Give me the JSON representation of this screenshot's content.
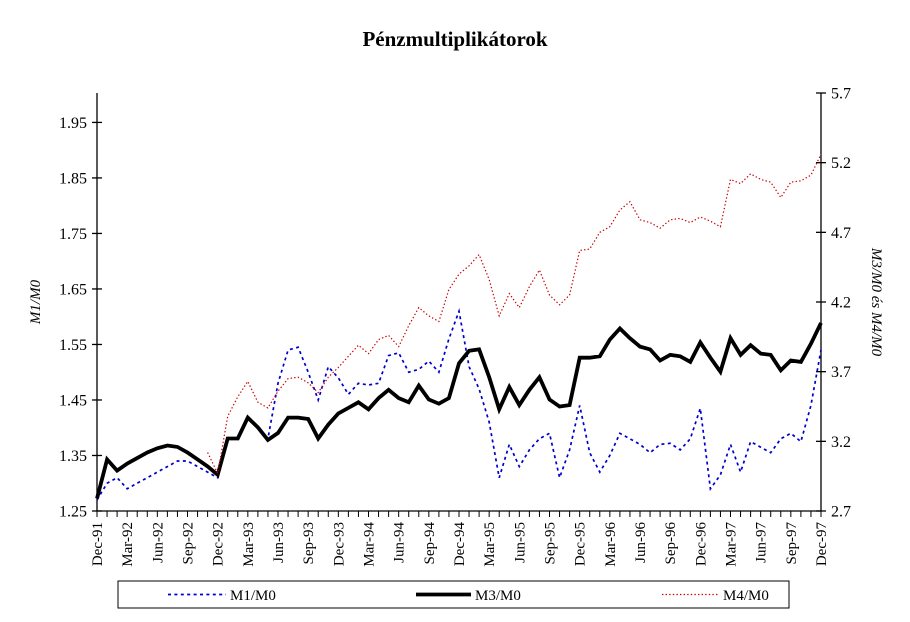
{
  "page": {
    "background": "#ffffff"
  },
  "chart_data": {
    "type": "line",
    "title": "Pénzmultiplikátorok",
    "ylabel_left": "M1/M0",
    "ylabel_right": "M3/M0 és M4/M0",
    "grid": false,
    "legend_position": "bottom",
    "y_left": {
      "min": 1.25,
      "max": 2.003,
      "ticks": [
        1.25,
        1.35,
        1.45,
        1.55,
        1.65,
        1.75,
        1.85,
        1.95
      ],
      "decimals": 2
    },
    "y_right": {
      "min": 2.7,
      "max": 5.7,
      "ticks": [
        2.7,
        3.2,
        3.7,
        4.2,
        4.7,
        5.2,
        5.7
      ],
      "decimals": 1
    },
    "x": {
      "points": 73,
      "label_every_n_months": 3,
      "tick_labels": [
        "Dec-91",
        "Mar-92",
        "Jun-92",
        "Sep-92",
        "Dec-92",
        "Mar-93",
        "Jun-93",
        "Sep-93",
        "Dec-93",
        "Mar-94",
        "Jun-94",
        "Sep-94",
        "Dec-94",
        "Mar-95",
        "Jun-95",
        "Sep-95",
        "Dec-95",
        "Mar-96",
        "Jun-96",
        "Sep-96",
        "Dec-96",
        "Mar-97",
        "Jun-97",
        "Sep-97",
        "Dec-97"
      ]
    },
    "series": [
      {
        "name": "M1/M0",
        "axis": "left",
        "color": "#0000cc",
        "line_style": "dashed",
        "values": [
          1.27,
          1.3,
          1.31,
          1.29,
          1.3,
          1.31,
          1.32,
          1.33,
          1.34,
          1.34,
          1.33,
          1.32,
          1.31,
          1.38,
          1.38,
          1.42,
          1.4,
          1.38,
          1.48,
          1.54,
          1.545,
          1.5,
          1.45,
          1.51,
          1.49,
          1.46,
          1.48,
          1.477,
          1.48,
          1.53,
          1.535,
          1.5,
          1.505,
          1.52,
          1.5,
          1.56,
          1.61,
          1.51,
          1.47,
          1.41,
          1.31,
          1.37,
          1.33,
          1.36,
          1.38,
          1.39,
          1.31,
          1.36,
          1.44,
          1.355,
          1.32,
          1.35,
          1.39,
          1.38,
          1.37,
          1.355,
          1.37,
          1.372,
          1.36,
          1.38,
          1.435,
          1.29,
          1.315,
          1.37,
          1.32,
          1.375,
          1.365,
          1.355,
          1.38,
          1.39,
          1.375,
          1.44,
          1.54
        ]
      },
      {
        "name": "M3/M0",
        "axis": "right",
        "color": "#000000",
        "line_style": "solid-thick",
        "values": [
          2.79,
          3.07,
          2.99,
          3.04,
          3.08,
          3.12,
          3.15,
          3.17,
          3.16,
          3.12,
          3.07,
          3.02,
          2.96,
          3.22,
          3.22,
          3.37,
          3.3,
          3.21,
          3.26,
          3.37,
          3.37,
          3.36,
          3.22,
          3.32,
          3.4,
          3.44,
          3.48,
          3.43,
          3.51,
          3.57,
          3.51,
          3.48,
          3.6,
          3.5,
          3.47,
          3.51,
          3.76,
          3.85,
          3.86,
          3.66,
          3.43,
          3.59,
          3.46,
          3.57,
          3.66,
          3.5,
          3.45,
          3.46,
          3.8,
          3.8,
          3.81,
          3.93,
          4.01,
          3.94,
          3.88,
          3.86,
          3.78,
          3.82,
          3.81,
          3.77,
          3.91,
          3.8,
          3.7,
          3.94,
          3.82,
          3.89,
          3.83,
          3.82,
          3.71,
          3.78,
          3.77,
          3.9,
          4.05
        ]
      },
      {
        "name": "M4/M0",
        "axis": "right",
        "color": "#cc0000",
        "line_style": "fine-dotted",
        "values": [
          null,
          null,
          null,
          null,
          null,
          null,
          null,
          null,
          null,
          null,
          null,
          3.12,
          2.97,
          3.38,
          3.52,
          3.63,
          3.48,
          3.44,
          3.56,
          3.65,
          3.66,
          3.62,
          3.55,
          3.66,
          3.73,
          3.81,
          3.89,
          3.83,
          3.93,
          3.96,
          3.88,
          4.03,
          4.16,
          4.1,
          4.06,
          4.29,
          4.4,
          4.46,
          4.54,
          4.36,
          4.1,
          4.26,
          4.16,
          4.31,
          4.43,
          4.25,
          4.18,
          4.25,
          4.57,
          4.58,
          4.7,
          4.74,
          4.86,
          4.92,
          4.79,
          4.77,
          4.73,
          4.79,
          4.8,
          4.77,
          4.81,
          4.78,
          4.74,
          5.08,
          5.05,
          5.12,
          5.08,
          5.06,
          4.95,
          5.06,
          5.07,
          5.11,
          5.26
        ]
      }
    ]
  }
}
